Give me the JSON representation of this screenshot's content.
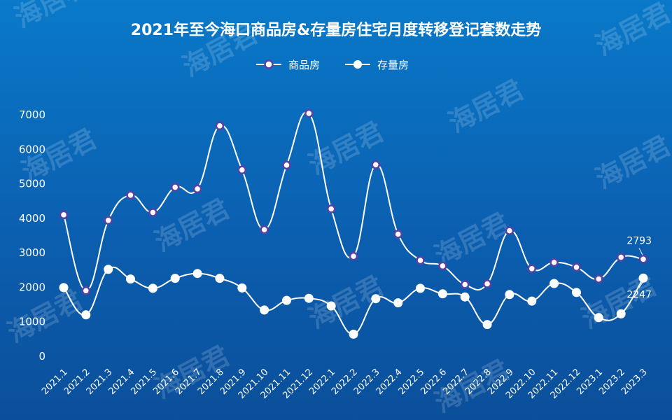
{
  "chart_data": {
    "type": "line",
    "title": "2021年至今海口商品房&存量房住宅月度转移登记套数走势",
    "categories": [
      "2021.1",
      "2021.2",
      "2021.3",
      "2021.4",
      "2021.5",
      "2021.6",
      "2021.7",
      "2021.8",
      "2021.9",
      "2021.10",
      "2021.11",
      "2021.12",
      "2022.1",
      "2022.2",
      "2022.3",
      "2022.4",
      "2022.5",
      "2022.6",
      "2022.7",
      "2022.8",
      "2022.9",
      "2022.10",
      "2022.11",
      "2022.12",
      "2023.1",
      "2023.2",
      "2023.3"
    ],
    "series": [
      {
        "name": "商品房",
        "marker": "hollow",
        "values": [
          4080,
          1880,
          3920,
          4650,
          4150,
          4880,
          4830,
          6660,
          5380,
          3650,
          5520,
          7020,
          4250,
          2880,
          5530,
          3520,
          2760,
          2600,
          2060,
          2080,
          3620,
          2520,
          2700,
          2560,
          2220,
          2850,
          2793
        ]
      },
      {
        "name": "存量房",
        "marker": "filled",
        "values": [
          1970,
          1180,
          2500,
          2220,
          1950,
          2240,
          2380,
          2240,
          1960,
          1320,
          1600,
          1660,
          1440,
          620,
          1650,
          1530,
          1950,
          1790,
          1700,
          900,
          1770,
          1580,
          2090,
          1830,
          1100,
          1210,
          2247
        ]
      }
    ],
    "annotations": [
      {
        "text": "2793",
        "series": 0,
        "index": 26
      },
      {
        "text": "2247",
        "series": 1,
        "index": 26
      }
    ],
    "yticks": [
      0,
      1000,
      2000,
      3000,
      4000,
      5000,
      6000,
      7000
    ],
    "ylim": [
      0,
      7200
    ],
    "xlabel": "",
    "ylabel": "",
    "legend": "top-center",
    "grid": false
  },
  "watermark": {
    "text": "海居君"
  },
  "colors": {
    "background_top": "#0a79c9",
    "background_bottom": "#0b4f9a",
    "line": "#ffffff",
    "marker_stroke": "#5b3fa3",
    "text": "#ffffff",
    "watermark": "rgba(255,255,255,0.16)"
  }
}
